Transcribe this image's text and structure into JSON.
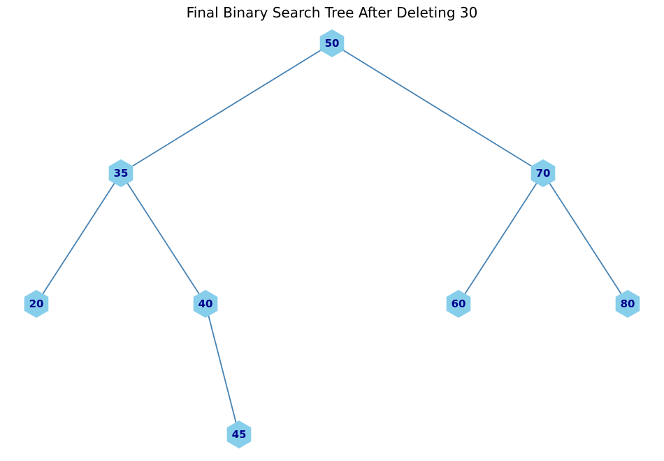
{
  "title": "Final Binary Search Tree After Deleting 30",
  "colors": {
    "node_fill": "#87ceeb",
    "edge": "#4682b4",
    "label": "#00008b",
    "background": "#ffffff"
  },
  "tree": {
    "nodes": [
      {
        "id": "n50",
        "label": "50"
      },
      {
        "id": "n35",
        "label": "35"
      },
      {
        "id": "n70",
        "label": "70"
      },
      {
        "id": "n20",
        "label": "20"
      },
      {
        "id": "n40",
        "label": "40"
      },
      {
        "id": "n60",
        "label": "60"
      },
      {
        "id": "n80",
        "label": "80"
      },
      {
        "id": "n45",
        "label": "45"
      }
    ],
    "edges": [
      {
        "from": "n50",
        "to": "n35"
      },
      {
        "from": "n50",
        "to": "n70"
      },
      {
        "from": "n35",
        "to": "n20"
      },
      {
        "from": "n35",
        "to": "n40"
      },
      {
        "from": "n40",
        "to": "n45"
      },
      {
        "from": "n70",
        "to": "n60"
      },
      {
        "from": "n70",
        "to": "n80"
      }
    ]
  }
}
